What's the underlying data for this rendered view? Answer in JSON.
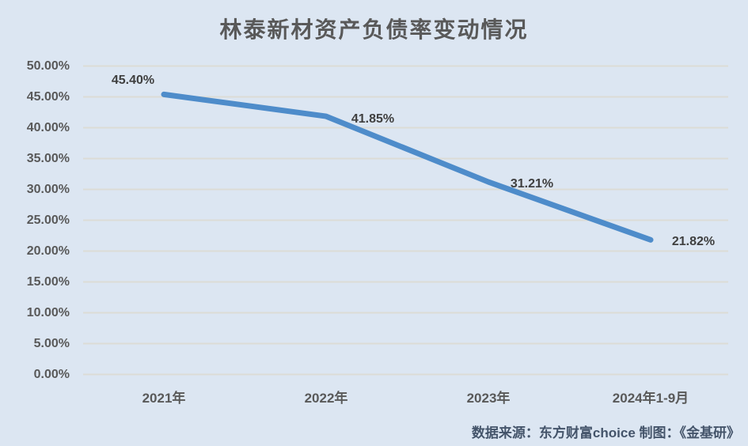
{
  "chart": {
    "title": "林泰新材资产负债率变动情况",
    "source_note": "数据来源：东方财富choice  制图：《金基研》"
  },
  "chart_data": {
    "type": "line",
    "title": "林泰新材资产负债率变动情况",
    "categories": [
      "2021年",
      "2022年",
      "2023年",
      "2024年1-9月"
    ],
    "values": [
      45.4,
      41.85,
      31.21,
      21.82
    ],
    "point_labels": [
      "45.40%",
      "41.85%",
      "31.21%",
      "21.82%"
    ],
    "xlabel": "",
    "ylabel": "",
    "ylim": [
      0,
      50
    ],
    "ytick_step": 5,
    "ytick_labels": [
      "0.00%",
      "5.00%",
      "10.00%",
      "15.00%",
      "20.00%",
      "25.00%",
      "30.00%",
      "35.00%",
      "40.00%",
      "45.00%",
      "50.00%"
    ],
    "grid": true,
    "legend": "none",
    "source_note": "数据来源：东方财富choice  制图：《金基研》",
    "colors": {
      "background": "#dce6f2",
      "line": "#4e8cca",
      "gridline": "#dcdcd6",
      "title_text": "#595959",
      "axis_text": "#595959",
      "data_label_text": "#3f3f3f",
      "source_text": "#44546a"
    }
  }
}
